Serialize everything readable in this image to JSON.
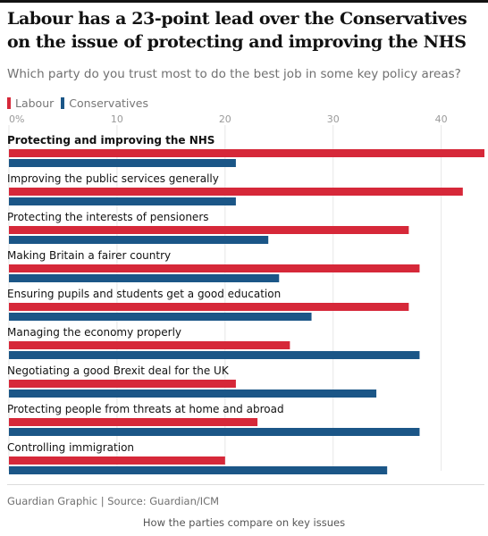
{
  "title": "Labour has a 23-point lead over the Conservatives on the issue of protecting and improving the NHS",
  "subtitle": "Which party do you trust most to do the best job in some key policy areas?",
  "legend": {
    "labour": "Labour",
    "conservatives": "Conservatives"
  },
  "colors": {
    "labour": "#d62839",
    "conservatives": "#1b5687"
  },
  "chart_data": {
    "type": "bar",
    "orientation": "horizontal",
    "xlim": [
      0,
      44
    ],
    "ticks": [
      0,
      10,
      20,
      30,
      40
    ],
    "tick_labels": [
      "0%",
      "10",
      "20",
      "30",
      "40"
    ],
    "grid": true,
    "legend_position": "top-left",
    "highlighted_category": 0,
    "categories": [
      "Protecting and improving the NHS",
      "Improving the public services generally",
      "Protecting the interests of pensioners",
      "Making Britain a fairer country",
      "Ensuring pupils and students get a good education",
      "Managing the economy properly",
      "Negotiating a good Brexit deal for the UK",
      "Protecting people from threats at home and abroad",
      "Controlling immigration"
    ],
    "series": [
      {
        "name": "Labour",
        "values": [
          44,
          42,
          37,
          38,
          37,
          26,
          21,
          23,
          20
        ]
      },
      {
        "name": "Conservatives",
        "values": [
          21,
          21,
          24,
          25,
          28,
          38,
          34,
          38,
          35
        ]
      }
    ]
  },
  "footer": {
    "source": "Guardian Graphic | Source: Guardian/ICM",
    "caption": "How the parties compare on key issues"
  }
}
